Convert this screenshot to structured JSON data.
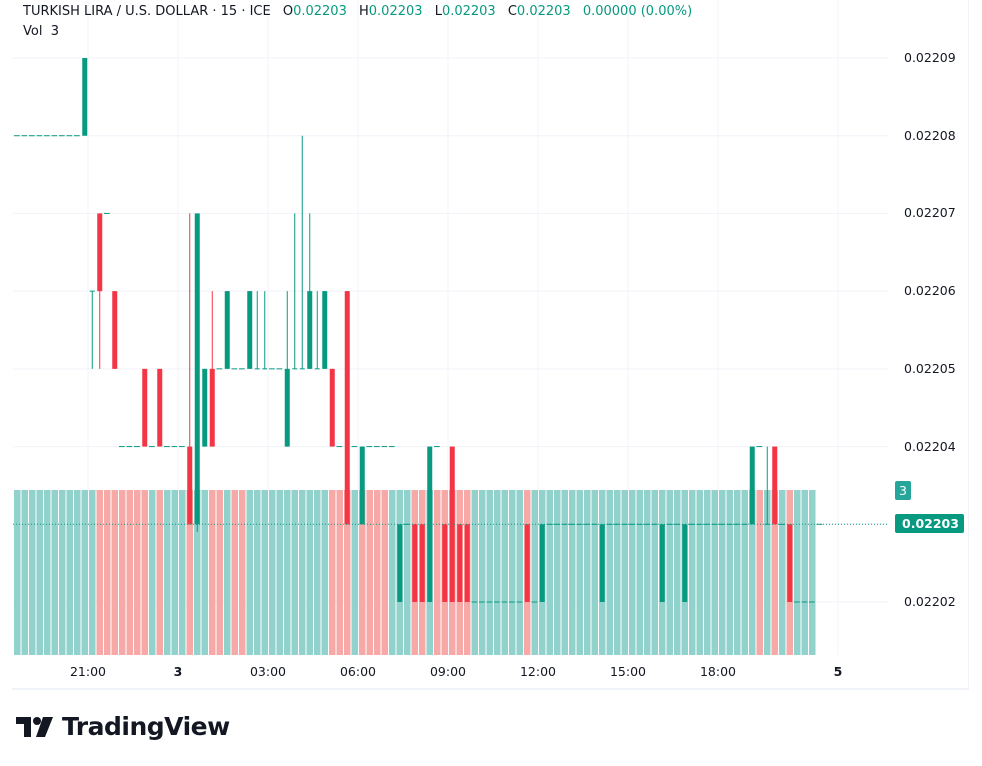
{
  "header": {
    "symbol": "TURKISH LIRA / U.S. DOLLAR · 15 · ICE",
    "open_label": "O",
    "open": "0.02203",
    "high_label": "H",
    "high": "0.02203",
    "low_label": "L",
    "low": "0.02203",
    "close_label": "C",
    "close": "0.02203",
    "change": "0.00000 (0.00%)",
    "vol_label": "Vol",
    "vol": "3"
  },
  "price_axis": {
    "labels": [
      "0.02209",
      "0.02208",
      "0.02207",
      "0.02206",
      "0.02205",
      "0.02204",
      "0.02203",
      "0.02202"
    ],
    "current_price": "0.02203",
    "current_volume": "3"
  },
  "time_axis": {
    "labels": [
      {
        "text": "21:00",
        "bold": false
      },
      {
        "text": "3",
        "bold": true
      },
      {
        "text": "03:00",
        "bold": false
      },
      {
        "text": "06:00",
        "bold": false
      },
      {
        "text": "09:00",
        "bold": false
      },
      {
        "text": "12:00",
        "bold": false
      },
      {
        "text": "15:00",
        "bold": false
      },
      {
        "text": "18:00",
        "bold": false
      },
      {
        "text": "5",
        "bold": true
      }
    ]
  },
  "colors": {
    "up": "#089981",
    "down": "#f23645",
    "vol_up": "#92d2cc",
    "vol_down": "#f7a9a7",
    "grid": "#f0f3fa",
    "price_line": "#089981"
  },
  "branding": {
    "name": "TradingView"
  },
  "chart_data": {
    "type": "candlestick",
    "title": "TURKISH LIRA / U.S. DOLLAR · 15 · ICE",
    "interval": "15",
    "ylim": [
      0.022013,
      0.022097
    ],
    "y_ticks": [
      0.02202,
      0.02203,
      0.02204,
      0.02205,
      0.02206,
      0.02207,
      0.02208,
      0.02209
    ],
    "x_ticks": [
      "21:00",
      "3",
      "03:00",
      "06:00",
      "09:00",
      "12:00",
      "15:00",
      "18:00",
      "5"
    ],
    "grid": true,
    "last": {
      "open": 0.02203,
      "high": 0.02203,
      "low": 0.02203,
      "close": 0.02203,
      "volume": 3
    },
    "note": "candles listed as [bar_index, open, high, low, close] in units of 1e-5 offset from 0.02200; bars not listed are flat at previous close",
    "candles": [
      [
        0,
        8,
        8,
        8,
        8
      ],
      [
        1,
        8,
        8,
        8,
        8
      ],
      [
        2,
        8,
        8,
        8,
        8
      ],
      [
        3,
        8,
        8,
        8,
        8
      ],
      [
        4,
        8,
        8,
        8,
        8
      ],
      [
        5,
        8,
        8,
        8,
        8
      ],
      [
        6,
        8,
        8,
        8,
        8
      ],
      [
        7,
        8,
        8,
        8,
        8
      ],
      [
        8,
        8,
        8,
        8,
        8
      ],
      [
        9,
        8,
        9,
        8,
        9
      ],
      [
        10,
        6,
        6,
        5,
        6
      ],
      [
        11,
        7,
        7,
        5,
        6
      ],
      [
        12,
        7,
        7,
        7,
        7
      ],
      [
        13,
        6,
        6,
        5,
        5
      ],
      [
        14,
        4,
        4,
        4,
        4
      ],
      [
        15,
        4,
        4,
        4,
        4
      ],
      [
        16,
        4,
        4,
        4,
        4
      ],
      [
        17,
        5,
        5,
        4,
        4
      ],
      [
        18,
        4,
        4,
        4,
        4
      ],
      [
        19,
        5,
        5,
        4,
        4
      ],
      [
        20,
        4,
        4,
        4,
        4
      ],
      [
        21,
        4,
        4,
        4,
        4
      ],
      [
        22,
        4,
        4,
        4,
        4
      ],
      [
        23,
        4,
        7,
        3,
        3
      ],
      [
        24,
        3,
        7,
        2.9,
        7
      ],
      [
        25,
        4,
        5,
        4,
        5
      ],
      [
        26,
        5,
        6,
        4,
        4
      ],
      [
        27,
        5,
        5,
        5,
        5
      ],
      [
        28,
        5,
        6,
        5,
        6
      ],
      [
        29,
        5,
        5,
        5,
        5
      ],
      [
        30,
        5,
        5,
        5,
        5
      ],
      [
        31,
        5,
        6,
        5,
        6
      ],
      [
        32,
        5,
        6,
        5,
        5
      ],
      [
        33,
        5,
        6,
        5,
        5
      ],
      [
        34,
        5,
        5,
        5,
        5
      ],
      [
        35,
        5,
        5,
        5,
        5
      ],
      [
        36,
        4,
        6,
        4,
        5
      ],
      [
        37,
        5,
        7,
        5,
        5
      ],
      [
        38,
        5,
        8,
        5,
        5
      ],
      [
        39,
        5,
        7,
        5,
        6
      ],
      [
        40,
        5,
        6,
        5,
        5
      ],
      [
        41,
        5,
        6,
        5,
        6
      ],
      [
        42,
        5,
        5,
        4,
        4
      ],
      [
        43,
        4,
        4,
        4,
        4
      ],
      [
        44,
        6,
        6,
        3,
        3
      ],
      [
        45,
        4,
        4,
        4,
        4
      ],
      [
        46,
        3,
        4,
        3,
        4
      ],
      [
        51,
        2,
        3,
        2,
        3
      ],
      [
        53,
        3,
        3,
        2,
        2
      ],
      [
        54,
        3,
        3,
        2,
        2
      ],
      [
        55,
        2,
        4,
        2,
        4
      ],
      [
        57,
        3,
        3,
        2,
        2
      ],
      [
        58,
        4,
        4,
        2,
        2
      ],
      [
        59,
        3,
        3,
        2,
        2
      ],
      [
        60,
        3,
        3,
        2,
        2
      ],
      [
        68,
        3,
        3,
        2,
        2
      ],
      [
        70,
        2,
        3,
        2,
        3
      ],
      [
        78,
        2,
        3,
        2,
        3
      ],
      [
        86,
        2,
        3,
        2,
        3
      ],
      [
        89,
        2,
        3,
        2,
        3
      ],
      [
        98,
        3,
        4,
        3,
        4
      ],
      [
        100,
        3,
        4,
        3,
        3
      ],
      [
        101,
        4,
        4,
        3,
        3
      ],
      [
        103,
        3,
        3,
        2,
        2
      ],
      [
        107,
        3,
        3,
        3,
        3
      ]
    ],
    "volume_down_bars": [
      11,
      12,
      13,
      14,
      15,
      16,
      17,
      19,
      23,
      26,
      27,
      29,
      30,
      42,
      43,
      44,
      46,
      47,
      48,
      49,
      53,
      54,
      56,
      57,
      58,
      59,
      60,
      68,
      99,
      101,
      103
    ],
    "volume_constant": 3
  }
}
